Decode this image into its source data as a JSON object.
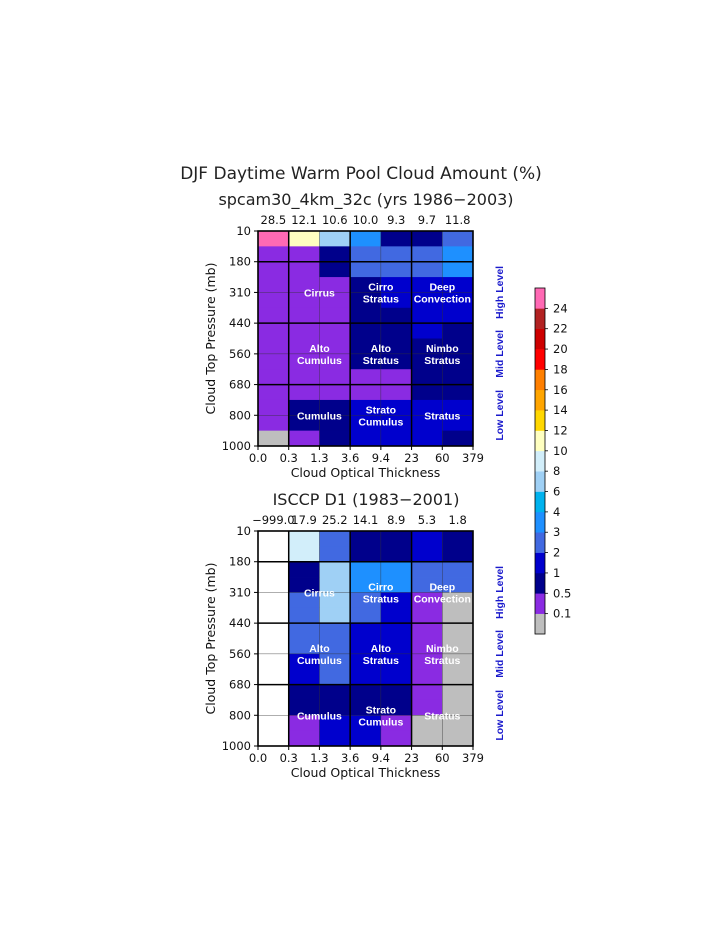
{
  "figure_title": "DJF Daytime Warm Pool Cloud Amount (%)",
  "x_tick_labels": [
    "0.0",
    "0.3",
    "1.3",
    "3.6",
    "9.4",
    "23",
    "60",
    "379"
  ],
  "y_tick_labels": [
    "10",
    "180",
    "310",
    "440",
    "560",
    "680",
    "800",
    "1000"
  ],
  "xlabel": "Cloud Optical Thickness",
  "ylabel": "Cloud Top Pressure (mb)",
  "level_labels": [
    "High Level",
    "Mid Level",
    "Low Level"
  ],
  "cloud_types": [
    {
      "line1": "Cirrus",
      "line2": ""
    },
    {
      "line1": "Cirro",
      "line2": "Stratus"
    },
    {
      "line1": "Deep",
      "line2": "Convection"
    },
    {
      "line1": "Alto",
      "line2": "Cumulus"
    },
    {
      "line1": "Alto",
      "line2": "Stratus"
    },
    {
      "line1": "Nimbo",
      "line2": "Stratus"
    },
    {
      "line1": "Cumulus",
      "line2": ""
    },
    {
      "line1": "Strato",
      "line2": "Cumulus"
    },
    {
      "line1": "Stratus",
      "line2": ""
    }
  ],
  "colorbar": {
    "labels": [
      "0.1",
      "0.5",
      "1",
      "2",
      "3",
      "4",
      "6",
      "8",
      "10",
      "12",
      "14",
      "16",
      "18",
      "20",
      "22",
      "24"
    ],
    "colors": [
      "#bebebe",
      "#8a2be2",
      "#00008b",
      "#0000cd",
      "#4169e1",
      "#1e90ff",
      "#00b2ee",
      "#9fd0f5",
      "#d2eefa",
      "#ffffc0",
      "#ffd700",
      "#ffa500",
      "#ff7f00",
      "#ff0000",
      "#cd0000",
      "#b22222",
      "#ff69b4"
    ]
  },
  "chart_data": [
    {
      "type": "heatmap",
      "subtitle": "spcam30_4km_32c (yrs 1986−2003)",
      "x_bin_edges": [
        0.0,
        0.3,
        1.3,
        3.6,
        9.4,
        23,
        60,
        379
      ],
      "y_bin_edges": [
        10,
        180,
        310,
        440,
        560,
        680,
        800,
        1000
      ],
      "column_totals": [
        "28.5",
        "12.1",
        "10.6",
        "10.0",
        "9.3",
        "9.7",
        "11.8"
      ],
      "color_classes": [
        [
          17,
          10,
          8,
          6,
          2,
          2,
          5
        ],
        [
          2,
          2,
          3,
          5,
          5,
          5,
          6
        ],
        [
          2,
          2,
          2,
          3,
          3,
          3,
          3
        ],
        [
          2,
          2,
          2,
          3,
          3,
          3,
          3
        ],
        [
          2,
          2,
          2,
          3,
          3,
          3,
          3
        ],
        [
          2,
          2,
          2,
          3,
          2,
          3,
          3
        ],
        [
          2,
          3,
          3,
          4,
          4,
          3,
          4
        ],
        [
          2,
          3,
          3,
          4,
          4,
          3,
          4
        ],
        [
          2,
          3,
          3,
          3,
          3,
          3,
          4
        ],
        [
          2,
          3,
          3,
          3,
          3,
          3,
          4
        ],
        [
          2,
          3,
          3,
          4,
          4,
          3,
          4
        ],
        [
          2,
          3,
          3,
          4,
          4,
          3,
          4
        ],
        [
          2,
          3,
          3,
          4,
          4,
          3,
          4
        ],
        [
          2,
          3,
          3,
          4,
          4,
          3,
          4
        ],
        [
          2,
          3,
          3,
          4,
          4,
          3,
          4
        ],
        [
          2,
          3,
          3,
          4,
          4,
          3,
          4
        ],
        [
          2,
          3,
          3,
          4,
          4,
          3,
          4
        ]
      ]
    },
    {
      "type": "heatmap",
      "subtitle": "ISCCP D1 (1983−2001)",
      "x_bin_edges": [
        0.0,
        0.3,
        1.3,
        3.6,
        9.4,
        23,
        60,
        379
      ],
      "y_bin_edges": [
        10,
        180,
        310,
        440,
        560,
        680,
        800,
        1000
      ],
      "column_totals": [
        "−999.0",
        "17.9",
        "25.2",
        "14.1",
        "8.9",
        "5.3",
        "1.8"
      ],
      "color_classes": []
    }
  ]
}
